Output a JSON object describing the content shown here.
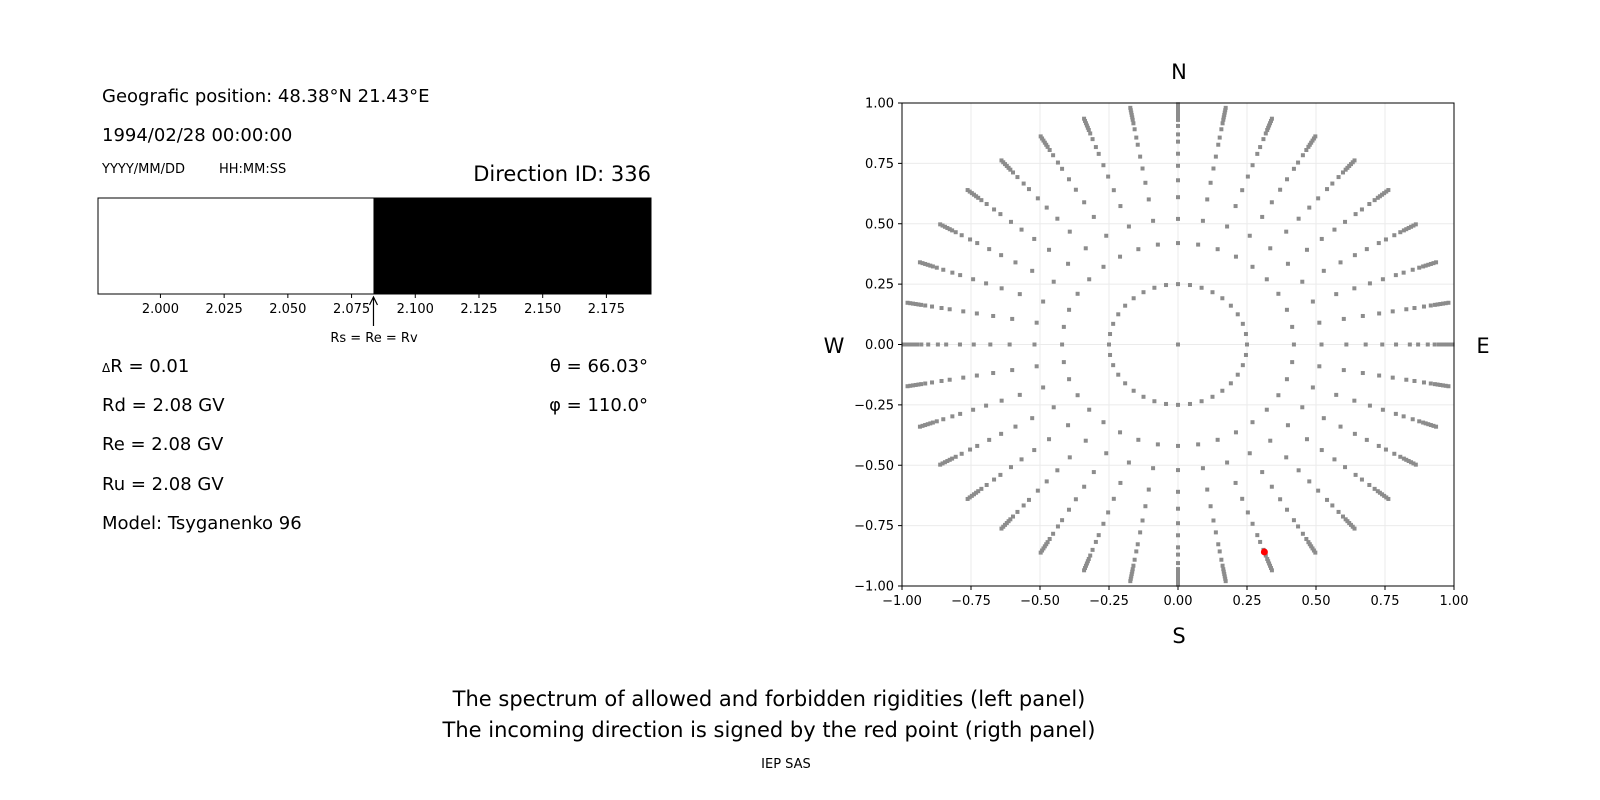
{
  "left": {
    "position": "Geografic position: 48.38°N 21.43°E",
    "datetime": "1994/02/28 00:00:00",
    "date_format": "YYYY/MM/DD",
    "time_format": "HH:MM:SS",
    "direction_id": "Direction ID: 336",
    "arrow_label": "Rs = Re = Rv",
    "delta_r": "R = 0.01",
    "delta_symbol": "Δ",
    "rd": "Rd = 2.08 GV",
    "re": "Re = 2.08 GV",
    "ru": "Ru = 2.08 GV",
    "model": "Model: Tsyganenko 96",
    "theta": "θ = 66.03°",
    "phi": "φ = 110.0°"
  },
  "captions": {
    "line1": "The spectrum of allowed and forbidden rigidities (left panel)",
    "line2": "The incoming direction is signed by the red point (rigth panel)",
    "credit": "IEP SAS"
  },
  "compass": {
    "n": "N",
    "s": "S",
    "e": "E",
    "w": "W"
  },
  "chart_data": [
    {
      "type": "bar",
      "description_of_marks": "rigidity spectrum strip: allowed (white) below cutoff, forbidden (black) above",
      "xlim": [
        1.9755,
        2.1925
      ],
      "xticks": [
        "2.000",
        "2.025",
        "2.050",
        "2.075",
        "2.100",
        "2.125",
        "2.150",
        "2.175"
      ],
      "xtick_values": [
        2.0,
        2.025,
        2.05,
        2.075,
        2.1,
        2.125,
        2.15,
        2.175
      ],
      "segments": [
        {
          "from": 1.9755,
          "to": 2.0836,
          "color": "#ffffff"
        },
        {
          "from": 2.0836,
          "to": 2.1925,
          "color": "#000000"
        }
      ],
      "cutoff": 2.0836
    },
    {
      "type": "scatter",
      "xlim": [
        -1,
        1
      ],
      "ylim": [
        -1,
        1
      ],
      "grid": true,
      "xticks": [
        "−1.00",
        "−0.75",
        "−0.50",
        "−0.25",
        "0.00",
        "0.25",
        "0.50",
        "0.75",
        "1.00"
      ],
      "yticks": [
        "−1.00",
        "−0.75",
        "−0.50",
        "−0.25",
        "0.00",
        "0.25",
        "0.50",
        "0.75",
        "1.00"
      ],
      "tick_values": [
        -1,
        -0.75,
        -0.5,
        -0.25,
        0,
        0.25,
        0.5,
        0.75,
        1
      ],
      "point_color": "#8c8c8c",
      "highlight_color": "#ff0000",
      "center_point": [
        0,
        0
      ],
      "inner_ring": {
        "radius": 0.25,
        "azimuth_step_deg": 10
      },
      "rays": {
        "azimuth_step_deg": 10,
        "radii": [
          0.42,
          0.52,
          0.61,
          0.68,
          0.74,
          0.79,
          0.84,
          0.87,
          0.905,
          0.93,
          0.945,
          0.955,
          0.965,
          0.975,
          0.985,
          0.995
        ]
      },
      "highlight": {
        "theta_deg": 66.03,
        "phi_deg": 110.0,
        "x": 0.313,
        "y": -0.859
      }
    }
  ]
}
